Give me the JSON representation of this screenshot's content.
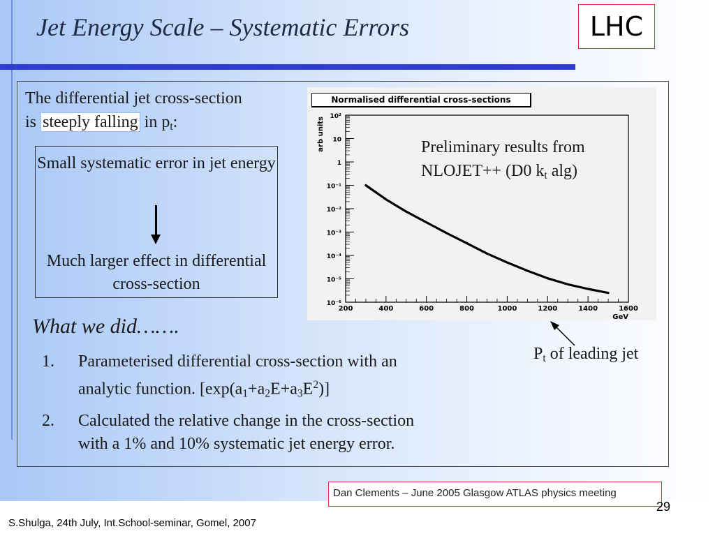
{
  "slide": {
    "title": "Jet Energy Scale – Systematic Errors",
    "logo": "LHC",
    "intro_line1": "The differential jet cross-section",
    "intro_is": "is",
    "intro_highlight": "steeply falling",
    "intro_in": "in p",
    "intro_sub": "t",
    "intro_colon": ":",
    "box_top": "Small systematic error in jet energy",
    "box_bottom": "Much larger effect in differential cross-section",
    "what_we_did": "What we did…….",
    "item1_num": "1.",
    "item1_line1": "Parameterised differential cross-section with an",
    "item1_line2_pre": "analytic function. [exp(a",
    "item1_s1": "1",
    "item1_plus_a": "+a",
    "item1_s2": "2",
    "item1_mid": "E+a",
    "item1_s3": "3",
    "item1_E": "E",
    "item1_sup": "2",
    "item1_end": ")]",
    "item2_num": "2.",
    "item2_line1": "Calculated the relative change in the cross-section",
    "item2_line2": "with a 1% and 10% systematic jet energy error.",
    "annot_line1": "Preliminary results from",
    "annot_line2_pre": "NLOJET++  (D0 k",
    "annot_sub": "t",
    "annot_line2_post": " alg)",
    "pt_pre": "P",
    "pt_sub": "t",
    "pt_post": " of leading jet",
    "credit": "Dan Clements – June 2005  Glasgow ATLAS physics meeting",
    "page_number": "29",
    "footer": "S.Shulga, 24th July, Int.School-seminar, Gomel, 2007"
  },
  "chart_data": {
    "type": "line",
    "title": "Normalised differential cross-sections",
    "xlabel": "GeV",
    "ylabel": "arb units",
    "xlim": [
      200,
      1600
    ],
    "ylim_exp": [
      -6,
      2
    ],
    "log_y": true,
    "x_ticks": [
      "200",
      "400",
      "600",
      "800",
      "1000",
      "1200",
      "1400",
      "1600"
    ],
    "y_ticks": [
      "10⁻⁶",
      "10⁻⁵",
      "10⁻⁴",
      "10⁻³",
      "10⁻²",
      "10⁻¹",
      "1",
      "10",
      "10²"
    ],
    "series": [
      {
        "x": [
          300,
          400,
          500,
          600,
          700,
          800,
          900,
          1000,
          1100,
          1200,
          1300,
          1400,
          1500
        ],
        "y": [
          0.1,
          0.025,
          0.0075,
          0.0026,
          0.0009,
          0.00033,
          0.00012,
          5e-05,
          2.2e-05,
          1.05e-05,
          5.8e-06,
          3.7e-06,
          2.5e-06
        ]
      }
    ],
    "colors": {
      "line": "#000000",
      "panel": "#f2f2f2"
    }
  }
}
